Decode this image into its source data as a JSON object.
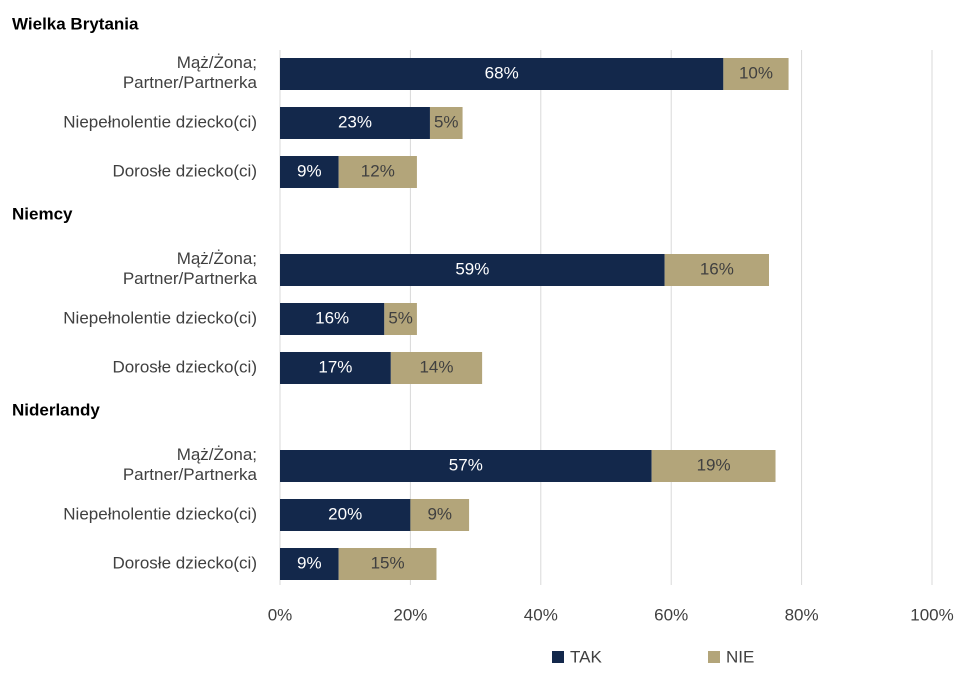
{
  "chart_data": {
    "type": "stacked-bar-horizontal",
    "categories": [
      "Wielka Brytania",
      "Mąż/Żona;\nPartner/Partnerka",
      "Niepełnolentie dziecko(ci)",
      "Dorosłe dziecko(ci)",
      "Niemcy",
      "Mąż/Żona;\nPartner/Partnerka",
      "Niepełnolentie dziecko(ci)",
      "Dorosłe dziecko(ci)",
      "Niderlandy",
      "Mąż/Żona;\nPartner/Partnerka",
      "Niepełnolentie dziecko(ci)",
      "Dorosłe dziecko(ci)"
    ],
    "series": [
      {
        "name": "TAK",
        "color": "#13284b",
        "values": [
          null,
          68,
          23,
          9,
          null,
          59,
          16,
          17,
          null,
          57,
          20,
          9
        ],
        "value_labels": [
          null,
          "68%",
          "23%",
          "9%",
          null,
          "59%",
          "16%",
          "17%",
          null,
          "57%",
          "20%",
          "9%"
        ]
      },
      {
        "name": "NIE",
        "color": "#b3a57a",
        "values": [
          null,
          10,
          5,
          12,
          null,
          16,
          5,
          14,
          null,
          19,
          9,
          15
        ],
        "value_labels": [
          null,
          "10%",
          "5%",
          "12%",
          null,
          "16%",
          "5%",
          "14%",
          null,
          "19%",
          "9%",
          "15%"
        ]
      }
    ],
    "xlim": [
      0,
      100
    ],
    "xticks": [
      {
        "value": 0,
        "label": "0%"
      },
      {
        "value": 20,
        "label": "20%"
      },
      {
        "value": 40,
        "label": "40%"
      },
      {
        "value": 60,
        "label": "60%"
      },
      {
        "value": 80,
        "label": "80%"
      },
      {
        "value": 100,
        "label": "100%"
      }
    ],
    "grid": true,
    "legend": "bottom"
  }
}
